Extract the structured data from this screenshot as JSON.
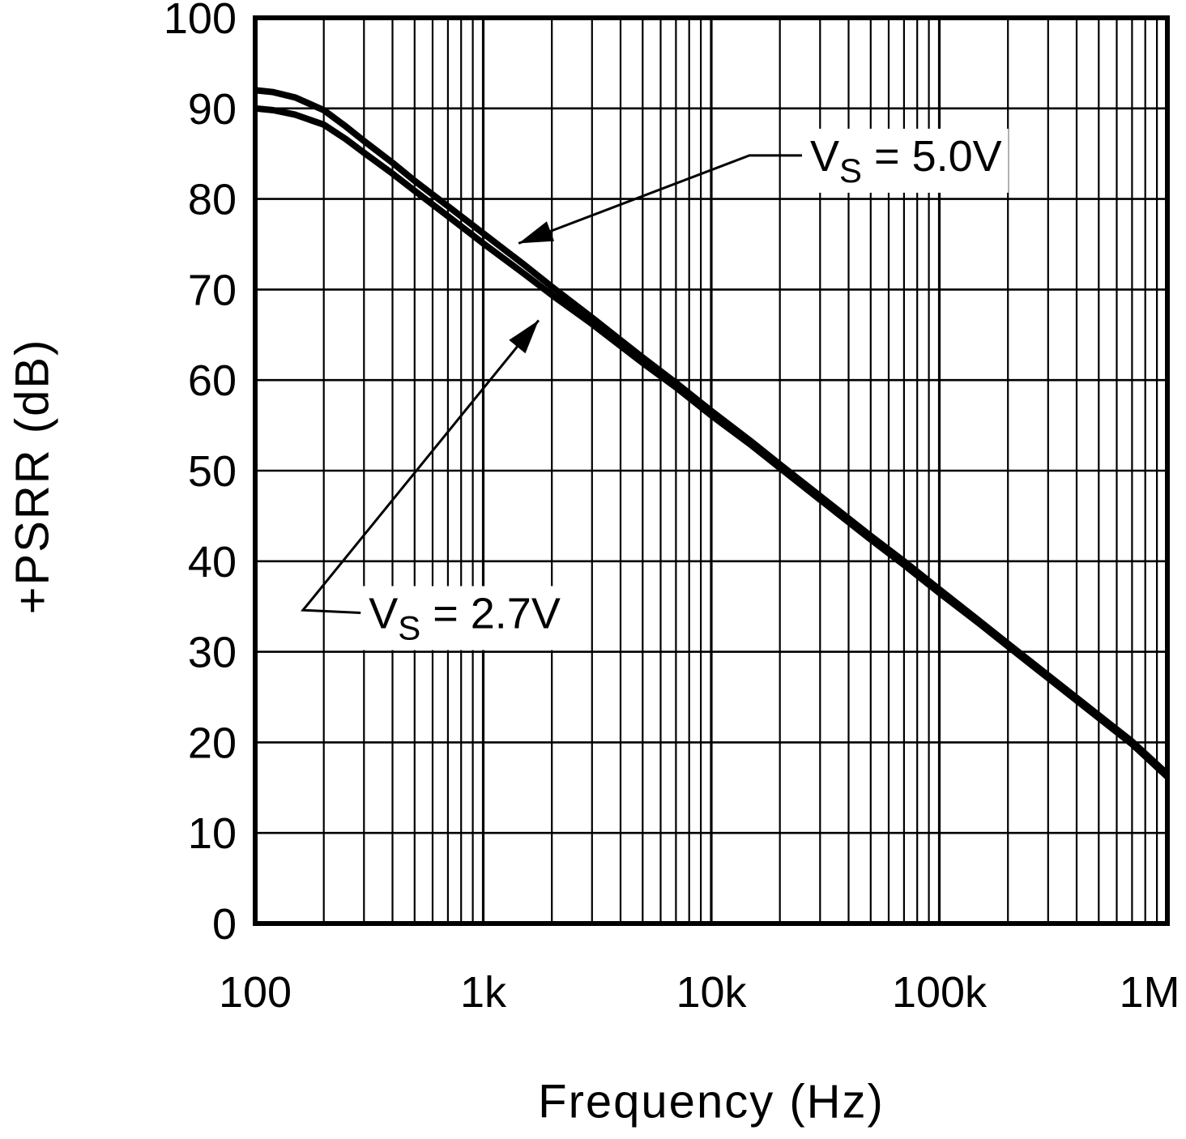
{
  "chart_data": {
    "type": "line",
    "title": "",
    "xlabel": "Frequency (Hz)",
    "ylabel": "+PSRR (dB)",
    "xscale": "log",
    "xlim": [
      100,
      1000000
    ],
    "ylim": [
      0,
      100
    ],
    "yticks": [
      0,
      10,
      20,
      30,
      40,
      50,
      60,
      70,
      80,
      90,
      100
    ],
    "xticks": [
      {
        "value": 100,
        "label": "100"
      },
      {
        "value": 1000,
        "label": "1k"
      },
      {
        "value": 10000,
        "label": "10k"
      },
      {
        "value": 100000,
        "label": "100k"
      },
      {
        "value": 1000000,
        "label": "1M"
      }
    ],
    "grid": "major-y, major-and-minor-x, solid black",
    "legend": "inline annotations with arrows",
    "colors": {
      "line": "#000000",
      "grid": "#000000",
      "background": "#ffffff"
    },
    "series": [
      {
        "name": "VS = 5.0V",
        "points": [
          [
            100,
            92
          ],
          [
            120,
            91.8
          ],
          [
            150,
            91.2
          ],
          [
            200,
            89.8
          ],
          [
            250,
            88
          ],
          [
            300,
            86.4
          ],
          [
            400,
            84
          ],
          [
            500,
            82
          ],
          [
            700,
            79.2
          ],
          [
            1000,
            76.2
          ],
          [
            1500,
            72.8
          ],
          [
            2000,
            70.3
          ],
          [
            3000,
            66.9
          ],
          [
            5000,
            62.5
          ],
          [
            7000,
            59.7
          ],
          [
            10000,
            56.6
          ],
          [
            15000,
            53.2
          ],
          [
            20000,
            50.7
          ],
          [
            30000,
            47.2
          ],
          [
            50000,
            42.8
          ],
          [
            70000,
            40
          ],
          [
            100000,
            36.9
          ],
          [
            150000,
            33.4
          ],
          [
            200000,
            30.9
          ],
          [
            300000,
            27.4
          ],
          [
            500000,
            23
          ],
          [
            700000,
            20.1
          ],
          [
            1000000,
            16.5
          ]
        ]
      },
      {
        "name": "VS = 2.7V",
        "points": [
          [
            100,
            90
          ],
          [
            120,
            89.8
          ],
          [
            150,
            89.3
          ],
          [
            200,
            88.2
          ],
          [
            250,
            86.6
          ],
          [
            300,
            85.1
          ],
          [
            400,
            82.8
          ],
          [
            500,
            80.9
          ],
          [
            700,
            78.1
          ],
          [
            1000,
            75.1
          ],
          [
            1500,
            71.8
          ],
          [
            2000,
            69.4
          ],
          [
            3000,
            66.2
          ],
          [
            5000,
            61.9
          ],
          [
            7000,
            59.2
          ],
          [
            10000,
            56.1
          ],
          [
            15000,
            52.8
          ],
          [
            20000,
            50.3
          ],
          [
            30000,
            46.8
          ],
          [
            50000,
            42.4
          ],
          [
            70000,
            39.6
          ],
          [
            100000,
            36.5
          ],
          [
            150000,
            33.1
          ],
          [
            200000,
            30.6
          ],
          [
            300000,
            27.1
          ],
          [
            500000,
            22.7
          ],
          [
            700000,
            19.8
          ],
          [
            1000000,
            16.2
          ]
        ]
      }
    ],
    "annotations": [
      {
        "pre": "V",
        "sub": "S",
        "post": " = 5.0V",
        "label_at": [
          25000,
          84.8
        ],
        "elbow": [
          14700,
          84.8
        ],
        "tip": [
          1430,
          75.1
        ]
      },
      {
        "pre": "V",
        "sub": "S",
        "post": " = 2.7V",
        "label_at": [
          290,
          34.3
        ],
        "elbow": [
          162,
          34.6
        ],
        "tip": [
          1750,
          66.6
        ]
      }
    ]
  }
}
